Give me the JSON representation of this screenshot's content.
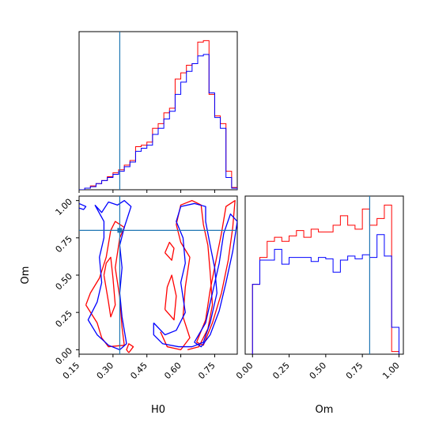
{
  "chart_data": {
    "type": "corner",
    "parameters": [
      "H0",
      "Om"
    ],
    "truth": {
      "H0": 0.33,
      "Om": 0.8
    },
    "colors": {
      "run1": "#ff0000",
      "run2": "#0000ff",
      "truth": "#1f77b4"
    },
    "panels": [
      {
        "kind": "hist1d",
        "parameter": "H0",
        "xlim": [
          0.15,
          0.85
        ],
        "bin_edges": [
          0.15,
          0.175,
          0.2,
          0.225,
          0.25,
          0.275,
          0.3,
          0.325,
          0.35,
          0.375,
          0.4,
          0.425,
          0.45,
          0.475,
          0.5,
          0.525,
          0.55,
          0.575,
          0.6,
          0.625,
          0.65,
          0.675,
          0.7,
          0.725,
          0.75,
          0.775,
          0.8,
          0.825,
          0.85
        ],
        "series": [
          {
            "name": "",
            "color": "#ff0000",
            "counts": [
              0,
              0.01,
              0.025,
              0.04,
              0.06,
              0.085,
              0.11,
              0.13,
              0.16,
              0.19,
              0.28,
              0.29,
              0.31,
              0.4,
              0.43,
              0.5,
              0.53,
              0.72,
              0.76,
              0.81,
              0.82,
              0.96,
              0.97,
              0.62,
              0.48,
              0.43,
              0.12,
              0.015
            ]
          },
          {
            "name": "",
            "color": "#0000ff",
            "counts": [
              0,
              0.01,
              0.02,
              0.04,
              0.06,
              0.08,
              0.1,
              0.12,
              0.15,
              0.18,
              0.25,
              0.27,
              0.29,
              0.36,
              0.4,
              0.46,
              0.51,
              0.62,
              0.7,
              0.77,
              0.82,
              0.87,
              0.88,
              0.63,
              0.47,
              0.4,
              0.08,
              0.01
            ]
          }
        ]
      },
      {
        "kind": "contour2d",
        "x": "H0",
        "y": "Om",
        "xlim": [
          0.15,
          0.85
        ],
        "ylim": [
          -0.03,
          1.03
        ],
        "xticks": [
          "0.15",
          "0.30",
          "0.45",
          "0.60",
          "0.75"
        ],
        "yticks": [
          "0.00",
          "0.25",
          "0.50",
          "0.75",
          "1.00"
        ],
        "xticks_values": [
          0.15,
          0.3,
          0.45,
          0.6,
          0.75
        ],
        "yticks_values": [
          0.0,
          0.25,
          0.5,
          0.75,
          1.0
        ],
        "xlabel": "H0",
        "ylabel": "Om",
        "series": [
          {
            "color": "#ff0000",
            "contours": [
              [
                [
                  0.18,
                  0.3
                ],
                [
                  0.23,
                  0.18
                ],
                [
                  0.25,
                  0.08
                ],
                [
                  0.28,
                  0.02
                ],
                [
                  0.35,
                  0.03
                ],
                [
                  0.34,
                  0.15
                ],
                [
                  0.33,
                  0.35
                ],
                [
                  0.31,
                  0.55
                ],
                [
                  0.33,
                  0.75
                ],
                [
                  0.35,
                  0.82
                ],
                [
                  0.31,
                  0.86
                ],
                [
                  0.29,
                  0.8
                ],
                [
                  0.27,
                  0.62
                ],
                [
                  0.24,
                  0.48
                ],
                [
                  0.2,
                  0.38
                ],
                [
                  0.18,
                  0.3
                ]
              ],
              [
                [
                  0.26,
                  0.5
                ],
                [
                  0.28,
                  0.32
                ],
                [
                  0.29,
                  0.22
                ],
                [
                  0.31,
                  0.3
                ],
                [
                  0.3,
                  0.48
                ],
                [
                  0.29,
                  0.62
                ],
                [
                  0.27,
                  0.58
                ],
                [
                  0.26,
                  0.5
                ]
              ],
              [
                [
                  0.37,
                  -0.02
                ],
                [
                  0.39,
                  0.02
                ],
                [
                  0.37,
                  0.04
                ],
                [
                  0.36,
                  0.0
                ],
                [
                  0.37,
                  -0.02
                ]
              ],
              [
                [
                  0.51,
                  0.12
                ],
                [
                  0.54,
                  0.02
                ],
                [
                  0.6,
                  0.0
                ],
                [
                  0.64,
                  0.08
                ],
                [
                  0.61,
                  0.22
                ],
                [
                  0.62,
                  0.42
                ],
                [
                  0.64,
                  0.62
                ],
                [
                  0.6,
                  0.72
                ],
                [
                  0.58,
                  0.84
                ],
                [
                  0.6,
                  0.97
                ],
                [
                  0.65,
                  1.0
                ],
                [
                  0.69,
                  0.97
                ],
                [
                  0.7,
                  0.84
                ],
                [
                  0.72,
                  0.7
                ],
                [
                  0.73,
                  0.52
                ],
                [
                  0.74,
                  0.3
                ],
                [
                  0.72,
                  0.14
                ],
                [
                  0.68,
                  0.02
                ],
                [
                  0.63,
                  0.0
                ]
              ],
              [
                [
                  0.53,
                  0.27
                ],
                [
                  0.57,
                  0.2
                ],
                [
                  0.58,
                  0.36
                ],
                [
                  0.56,
                  0.5
                ],
                [
                  0.54,
                  0.42
                ],
                [
                  0.53,
                  0.27
                ]
              ],
              [
                [
                  0.53,
                  0.65
                ],
                [
                  0.56,
                  0.6
                ],
                [
                  0.57,
                  0.68
                ],
                [
                  0.55,
                  0.72
                ],
                [
                  0.53,
                  0.65
                ]
              ],
              [
                [
                  0.67,
                  0.05
                ],
                [
                  0.71,
                  0.2
                ],
                [
                  0.73,
                  0.4
                ],
                [
                  0.76,
                  0.63
                ],
                [
                  0.78,
                  0.78
                ],
                [
                  0.8,
                  0.96
                ],
                [
                  0.84,
                  1.0
                ],
                [
                  0.83,
                  0.82
                ],
                [
                  0.81,
                  0.6
                ],
                [
                  0.78,
                  0.38
                ],
                [
                  0.74,
                  0.18
                ],
                [
                  0.7,
                  0.03
                ],
                [
                  0.67,
                  0.05
                ]
              ]
            ]
          },
          {
            "color": "#0000ff",
            "contours": [
              [
                [
                  0.22,
                  0.97
                ],
                [
                  0.25,
                  0.92
                ],
                [
                  0.28,
                  0.99
                ],
                [
                  0.32,
                  0.97
                ],
                [
                  0.35,
                  1.0
                ],
                [
                  0.38,
                  0.96
                ],
                [
                  0.35,
                  0.82
                ],
                [
                  0.33,
                  0.7
                ],
                [
                  0.34,
                  0.55
                ],
                [
                  0.33,
                  0.38
                ],
                [
                  0.34,
                  0.22
                ],
                [
                  0.36,
                  0.04
                ],
                [
                  0.33,
                  0.0
                ],
                [
                  0.28,
                  0.03
                ],
                [
                  0.23,
                  0.1
                ],
                [
                  0.19,
                  0.2
                ],
                [
                  0.23,
                  0.32
                ],
                [
                  0.25,
                  0.45
                ],
                [
                  0.24,
                  0.62
                ],
                [
                  0.26,
                  0.75
                ],
                [
                  0.26,
                  0.86
                ],
                [
                  0.22,
                  0.97
                ]
              ],
              [
                [
                  0.15,
                  0.98
                ],
                [
                  0.18,
                  0.96
                ],
                [
                  0.17,
                  0.94
                ],
                [
                  0.15,
                  0.95
                ]
              ],
              [
                [
                  0.48,
                  0.18
                ],
                [
                  0.53,
                  0.1
                ],
                [
                  0.58,
                  0.13
                ],
                [
                  0.62,
                  0.25
                ],
                [
                  0.6,
                  0.45
                ],
                [
                  0.62,
                  0.58
                ],
                [
                  0.61,
                  0.75
                ],
                [
                  0.58,
                  0.86
                ],
                [
                  0.6,
                  0.96
                ],
                [
                  0.66,
                  0.98
                ],
                [
                  0.71,
                  0.96
                ],
                [
                  0.71,
                  0.86
                ],
                [
                  0.73,
                  0.7
                ],
                [
                  0.75,
                  0.55
                ],
                [
                  0.76,
                  0.38
                ],
                [
                  0.73,
                  0.18
                ],
                [
                  0.7,
                  0.05
                ],
                [
                  0.65,
                  0.02
                ],
                [
                  0.59,
                  0.02
                ],
                [
                  0.52,
                  0.04
                ],
                [
                  0.48,
                  0.1
                ],
                [
                  0.48,
                  0.18
                ]
              ],
              [
                [
                  0.66,
                  0.05
                ],
                [
                  0.71,
                  0.18
                ],
                [
                  0.74,
                  0.38
                ],
                [
                  0.77,
                  0.58
                ],
                [
                  0.79,
                  0.78
                ],
                [
                  0.82,
                  0.91
                ],
                [
                  0.85,
                  0.86
                ],
                [
                  0.83,
                  0.66
                ],
                [
                  0.8,
                  0.45
                ],
                [
                  0.77,
                  0.26
                ],
                [
                  0.73,
                  0.1
                ],
                [
                  0.69,
                  0.02
                ],
                [
                  0.66,
                  0.05
                ]
              ]
            ]
          }
        ]
      },
      {
        "kind": "hist1d",
        "parameter": "Om",
        "xlim": [
          -0.05,
          1.03
        ],
        "xticks": [
          "0.00",
          "0.25",
          "0.50",
          "0.75",
          "1.00"
        ],
        "xticks_values": [
          0.0,
          0.25,
          0.5,
          0.75,
          1.0
        ],
        "xlabel": "Om",
        "bin_edges": [
          0.0,
          0.05,
          0.1,
          0.15,
          0.2,
          0.25,
          0.3,
          0.35,
          0.4,
          0.45,
          0.5,
          0.55,
          0.6,
          0.65,
          0.7,
          0.75,
          0.8,
          0.85,
          0.9,
          0.95,
          1.0
        ],
        "series": [
          {
            "name": "",
            "color": "#ff0000",
            "counts": [
              0.52,
              0.72,
              0.84,
              0.87,
              0.84,
              0.88,
              0.92,
              0.87,
              0.93,
              0.91,
              0.91,
              0.96,
              1.03,
              0.96,
              0.93,
              1.08,
              0.96,
              1.01,
              1.11,
              0.02
            ]
          },
          {
            "name": "",
            "color": "#0000ff",
            "counts": [
              0.52,
              0.7,
              0.7,
              0.78,
              0.67,
              0.72,
              0.72,
              0.72,
              0.69,
              0.72,
              0.71,
              0.61,
              0.7,
              0.73,
              0.71,
              0.74,
              0.72,
              0.89,
              0.73,
              0.2
            ]
          }
        ]
      }
    ]
  }
}
